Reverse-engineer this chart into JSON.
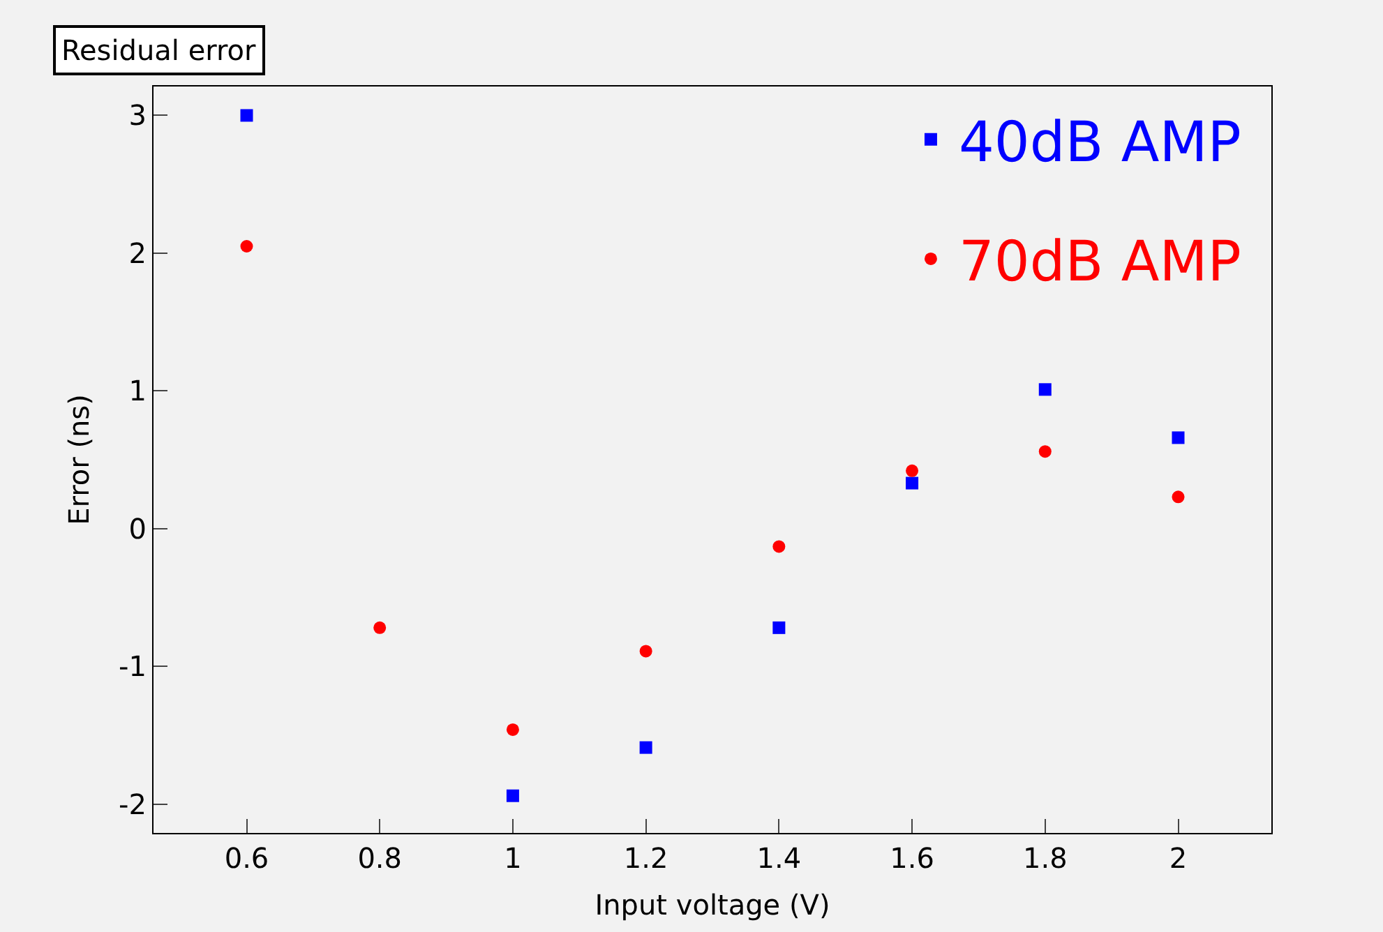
{
  "chart_data": {
    "type": "scatter",
    "title": "Residual error",
    "xlabel": "Input voltage (V)",
    "ylabel": "Error (ns)",
    "x": [
      0.6,
      0.8,
      1.0,
      1.2,
      1.4,
      1.6,
      1.8,
      2.0
    ],
    "series": [
      {
        "name": "40dB AMP",
        "color": "#0000ff",
        "marker": "square",
        "values": [
          3.0,
          null,
          -1.94,
          -1.59,
          -0.72,
          0.33,
          1.01,
          0.66
        ]
      },
      {
        "name": "70dB AMP",
        "color": "#ff0000",
        "marker": "circle",
        "values": [
          2.05,
          -0.72,
          -1.46,
          -0.89,
          -0.13,
          0.42,
          0.56,
          0.23
        ]
      }
    ],
    "xlim": [
      0.46,
      2.14
    ],
    "xticks": [
      {
        "value": 0.6,
        "label": "0.6"
      },
      {
        "value": 0.8,
        "label": "0.8"
      },
      1,
      {
        "value": 1.2,
        "label": "1.2"
      },
      {
        "value": 1.4,
        "label": "1.4"
      },
      {
        "value": 1.6,
        "label": "1.6"
      },
      {
        "value": 1.8,
        "label": "1.8"
      },
      2
    ],
    "ylim": [
      -2.21,
      3.21
    ],
    "yticks": [
      -2,
      -1,
      0,
      1,
      2,
      3
    ],
    "grid": false,
    "legend": "top right"
  }
}
